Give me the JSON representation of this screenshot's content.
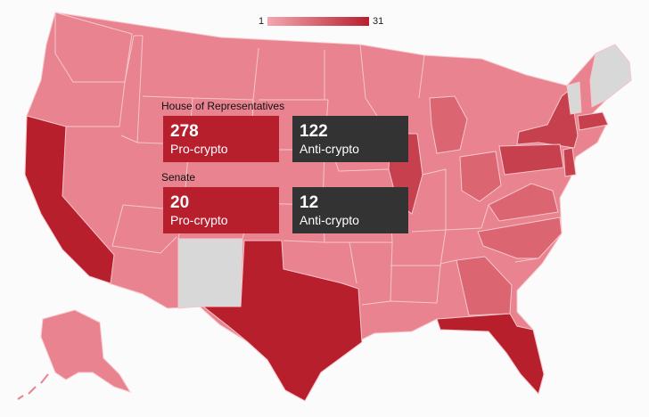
{
  "legend": {
    "min": "1",
    "max": "31"
  },
  "colors": {
    "legend_low": "#f3a7b1",
    "legend_high": "#b81f2d",
    "pro": "#b81f2d",
    "anti": "#333333",
    "no_data": "#d8d8d8",
    "state_light": "#e8838f",
    "state_mid": "#dc6572",
    "state_dark": "#c7404d",
    "state_darkest": "#b81f2d",
    "border": "#f6c7cc"
  },
  "house": {
    "title": "House of Representatives",
    "pro_count": "278",
    "pro_label": "Pro-crypto",
    "anti_count": "122",
    "anti_label": "Anti-crypto"
  },
  "senate": {
    "title": "Senate",
    "pro_count": "20",
    "pro_label": "Pro-crypto",
    "anti_count": "12",
    "anti_label": "Anti-crypto"
  }
}
